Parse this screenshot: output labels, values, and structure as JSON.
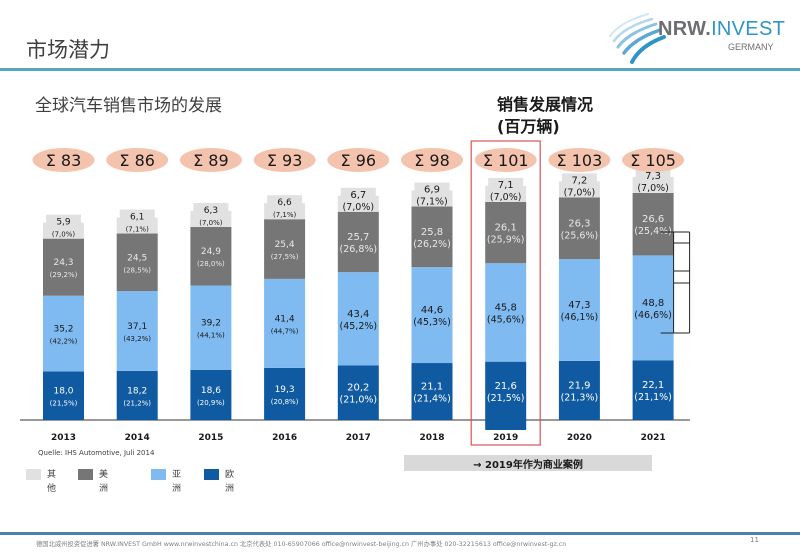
{
  "header": {
    "title": "市场潜力",
    "logo_name_bold": "NRW.",
    "logo_name_light": "INVEST",
    "logo_sub": "GERMANY"
  },
  "subtitle": "全球汽车销售市场的发展",
  "unit_title_line1": "销售发展情况",
  "unit_title_line2": "(百万辆)",
  "colors": {
    "other": "#e1e1e1",
    "america": "#767676",
    "asia": "#7fbaf0",
    "europe": "#0f5aa0",
    "sum_badge": "#f4c3ad",
    "highlight_box": "#d9534f",
    "header_rule": "#5aa5c0",
    "footer_rule": "#4f7fae"
  },
  "chart_data": {
    "type": "bar",
    "stacked": true,
    "title": "全球汽车销售市场的发展",
    "unit": "百万辆",
    "categories": [
      "2013",
      "2014",
      "2015",
      "2016",
      "2017",
      "2018",
      "2019",
      "2020",
      "2021"
    ],
    "totals": [
      "Σ 83",
      "Σ 86",
      "Σ 89",
      "Σ 93",
      "Σ 96",
      "Σ 98",
      "Σ 101",
      "Σ 103",
      "Σ 105"
    ],
    "highlight_category": "2019",
    "series": [
      {
        "key": "europe",
        "name": "欧洲",
        "values": [
          18.0,
          18.2,
          18.6,
          19.3,
          20.2,
          21.1,
          21.6,
          21.9,
          22.1
        ],
        "labels": [
          "18,0",
          "18,2",
          "18,6",
          "19,3",
          "20,2",
          "21,1",
          "21,6",
          "21,9",
          "22,1"
        ],
        "shares": [
          "(21,5%)",
          "(21,2%)",
          "(20,9%)",
          "(20,8%)",
          "(21,0%)",
          "(21,4%)",
          "(21,5%)",
          "(21,3%)",
          "(21,1%)"
        ]
      },
      {
        "key": "asia",
        "name": "亚洲",
        "values": [
          35.2,
          37.1,
          39.2,
          41.4,
          43.4,
          44.6,
          45.8,
          47.3,
          48.8
        ],
        "labels": [
          "35,2",
          "37,1",
          "39,2",
          "41,4",
          "43,4",
          "44,6",
          "45,8",
          "47,3",
          "48,8"
        ],
        "shares": [
          "(42,2%)",
          "(43,2%)",
          "(44,1%)",
          "(44,7%)",
          "(45,2%)",
          "(45,3%)",
          "(45,6%)",
          "(46,1%)",
          "(46,6%)"
        ]
      },
      {
        "key": "america",
        "name": "美洲",
        "values": [
          24.3,
          24.5,
          24.9,
          25.4,
          25.7,
          25.8,
          26.1,
          26.3,
          26.6
        ],
        "labels": [
          "24,3",
          "24,5",
          "24,9",
          "25,4",
          "25,7",
          "25,8",
          "26,1",
          "26,3",
          "26,6"
        ],
        "shares": [
          "(29,2%)",
          "(28,5%)",
          "(28,0%)",
          "(27,5%)",
          "(26,8%)",
          "(26,2%)",
          "(25,9%)",
          "(25,6%)",
          "(25,4%)"
        ]
      },
      {
        "key": "other",
        "name": "其他",
        "values": [
          5.9,
          6.1,
          6.3,
          6.6,
          6.7,
          6.9,
          7.1,
          7.2,
          7.3
        ],
        "labels": [
          "5,9",
          "6,1",
          "6,3",
          "6,6",
          "6,7",
          "6,9",
          "7,1",
          "7,2",
          "7,3"
        ],
        "shares": [
          "(7,0%)",
          "(7,1%)",
          "(7,0%)",
          "(7,1%)",
          "(7,0%)",
          "(7,1%)",
          "(7,0%)",
          "(7,0%)",
          "(7,0%)"
        ]
      }
    ],
    "legend": [
      "其他",
      "美洲",
      "亚洲",
      "欧洲"
    ],
    "legend_position": "bottom-left",
    "source": "Quelle: IHS Automotive, Juli 2014"
  },
  "legend": [
    {
      "key": "other",
      "label": "其他"
    },
    {
      "key": "america",
      "label": "美洲"
    },
    {
      "key": "asia",
      "label": "亚洲"
    },
    {
      "key": "europe",
      "label": "欧洲"
    }
  ],
  "source": "Quelle: IHS Automotive, Juli 2014",
  "case_label": "→ 2019年作为商业案例",
  "footer": {
    "text": "德国北威州投资促进署 NRW.INVEST GmbH    www.nrwinvestchina.cn   北京代表处 010-65907066 office@nrwinvest-beijing.cn   广州办事处 020-32215613 office@nrwinvest-gz.cn",
    "page_number": "11"
  }
}
